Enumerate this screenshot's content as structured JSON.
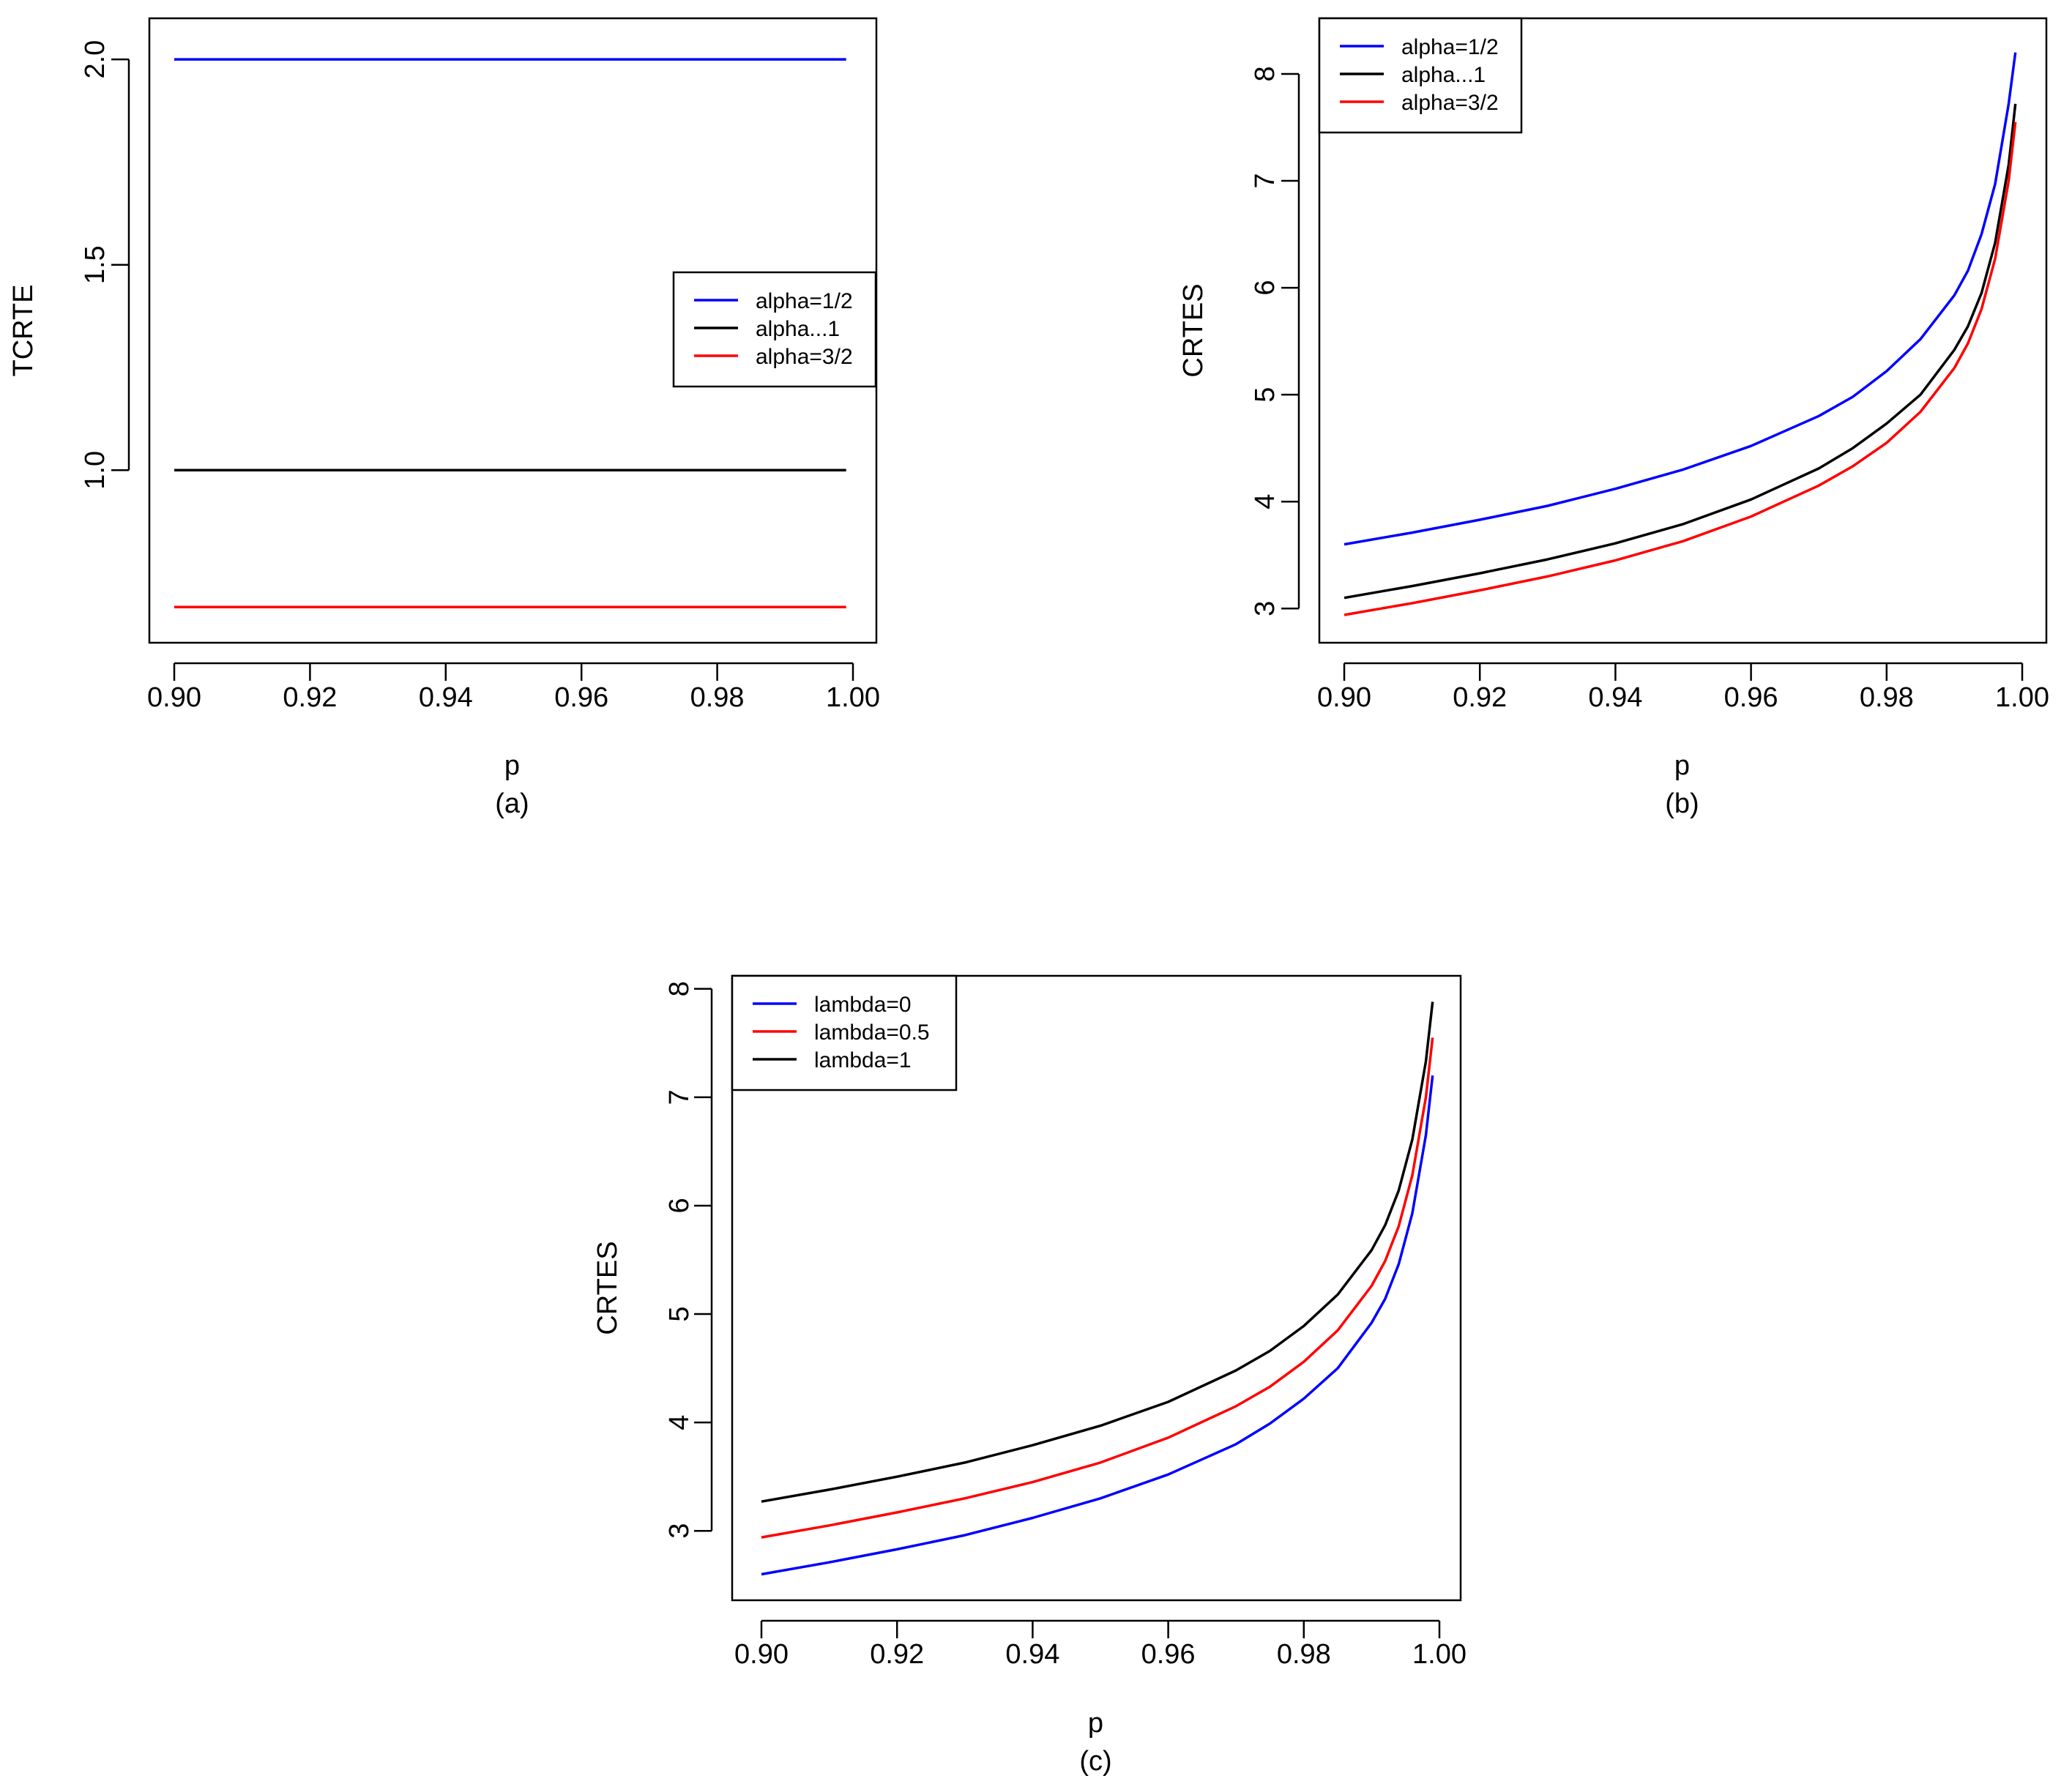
{
  "chart_data": [
    {
      "id": "a",
      "type": "line",
      "sublabel": "(a)",
      "xlabel": "p",
      "ylabel": "TCRTE",
      "xlim": [
        0.9,
        1.0
      ],
      "ylim": [
        0.58,
        2.1
      ],
      "xticks": [
        "0.90",
        "0.92",
        "0.94",
        "0.96",
        "0.98",
        "1.00"
      ],
      "xtick_values": [
        0.9,
        0.92,
        0.94,
        0.96,
        0.98,
        1.0
      ],
      "yticks": [
        "1.0",
        "1.5",
        "2.0"
      ],
      "ytick_values": [
        1.0,
        1.5,
        2.0
      ],
      "legend_position": "right",
      "x": [
        0.9,
        0.91,
        0.92,
        0.93,
        0.94,
        0.95,
        0.96,
        0.97,
        0.975,
        0.98,
        0.985,
        0.99,
        0.992,
        0.994,
        0.996,
        0.998,
        0.999
      ],
      "series": [
        {
          "name": "alpha=1/2",
          "color": "#0000ff",
          "values": [
            2,
            2,
            2,
            2,
            2,
            2,
            2,
            2,
            2,
            2,
            2,
            2,
            2,
            2,
            2,
            2,
            2
          ]
        },
        {
          "name": "alpha...1",
          "color": "#000000",
          "values": [
            1,
            1,
            1,
            1,
            1,
            1,
            1,
            1,
            1,
            1,
            1,
            1,
            1,
            1,
            1,
            1,
            1
          ]
        },
        {
          "name": "alpha=3/2",
          "color": "#ff0000",
          "values": [
            0.667,
            0.667,
            0.667,
            0.667,
            0.667,
            0.667,
            0.667,
            0.667,
            0.667,
            0.667,
            0.667,
            0.667,
            0.667,
            0.667,
            0.667,
            0.667,
            0.667
          ]
        }
      ]
    },
    {
      "id": "b",
      "type": "line",
      "sublabel": "(b)",
      "xlabel": "p",
      "ylabel": "CRTES",
      "xlim": [
        0.9,
        1.0
      ],
      "ylim": [
        2.68,
        8.52
      ],
      "xticks": [
        "0.90",
        "0.92",
        "0.94",
        "0.96",
        "0.98",
        "1.00"
      ],
      "xtick_values": [
        0.9,
        0.92,
        0.94,
        0.96,
        0.98,
        1.0
      ],
      "yticks": [
        "3",
        "4",
        "5",
        "6",
        "7",
        "8"
      ],
      "ytick_values": [
        3,
        4,
        5,
        6,
        7,
        8
      ],
      "legend_position": "top-left",
      "x": [
        0.9,
        0.91,
        0.92,
        0.93,
        0.94,
        0.95,
        0.96,
        0.97,
        0.975,
        0.98,
        0.985,
        0.99,
        0.992,
        0.994,
        0.996,
        0.998,
        0.999
      ],
      "series": [
        {
          "name": "alpha=1/2",
          "color": "#0000ff",
          "values": [
            3.6,
            3.71,
            3.83,
            3.96,
            4.12,
            4.3,
            4.52,
            4.8,
            4.98,
            5.22,
            5.52,
            5.93,
            6.16,
            6.5,
            6.97,
            7.72,
            8.2
          ]
        },
        {
          "name": "alpha...1",
          "color": "#000000",
          "values": [
            3.1,
            3.21,
            3.33,
            3.46,
            3.61,
            3.79,
            4.02,
            4.31,
            4.5,
            4.73,
            5.0,
            5.42,
            5.64,
            5.95,
            6.42,
            7.15,
            7.72
          ]
        },
        {
          "name": "alpha=3/2",
          "color": "#ff0000",
          "values": [
            2.94,
            3.05,
            3.17,
            3.3,
            3.45,
            3.63,
            3.86,
            4.15,
            4.33,
            4.55,
            4.84,
            5.25,
            5.48,
            5.8,
            6.27,
            7.0,
            7.55
          ]
        }
      ]
    },
    {
      "id": "c",
      "type": "line",
      "sublabel": "(c)",
      "xlabel": "p",
      "ylabel": "CRTES",
      "xlim": [
        0.9,
        1.0
      ],
      "ylim": [
        2.36,
        8.12
      ],
      "xticks": [
        "0.90",
        "0.92",
        "0.94",
        "0.96",
        "0.98",
        "1.00"
      ],
      "xtick_values": [
        0.9,
        0.92,
        0.94,
        0.96,
        0.98,
        1.0
      ],
      "yticks": [
        "3",
        "4",
        "5",
        "6",
        "7",
        "8"
      ],
      "ytick_values": [
        3,
        4,
        5,
        6,
        7,
        8
      ],
      "legend_position": "top-left",
      "x": [
        0.9,
        0.91,
        0.92,
        0.93,
        0.94,
        0.95,
        0.96,
        0.97,
        0.975,
        0.98,
        0.985,
        0.99,
        0.992,
        0.994,
        0.996,
        0.998,
        0.999
      ],
      "series": [
        {
          "name": "lambda=0",
          "color": "#0000ff",
          "values": [
            2.6,
            2.71,
            2.83,
            2.96,
            3.12,
            3.3,
            3.52,
            3.8,
            3.99,
            4.22,
            4.5,
            4.92,
            5.14,
            5.46,
            5.93,
            6.65,
            7.2
          ]
        },
        {
          "name": "lambda=0.5",
          "color": "#ff0000",
          "values": [
            2.94,
            3.05,
            3.17,
            3.3,
            3.45,
            3.63,
            3.86,
            4.15,
            4.33,
            4.56,
            4.85,
            5.26,
            5.49,
            5.81,
            6.28,
            7.0,
            7.55
          ]
        },
        {
          "name": "lambda=1",
          "color": "#000000",
          "values": [
            3.27,
            3.38,
            3.5,
            3.63,
            3.79,
            3.97,
            4.19,
            4.48,
            4.66,
            4.89,
            5.18,
            5.59,
            5.82,
            6.14,
            6.61,
            7.33,
            7.88
          ]
        }
      ]
    }
  ]
}
